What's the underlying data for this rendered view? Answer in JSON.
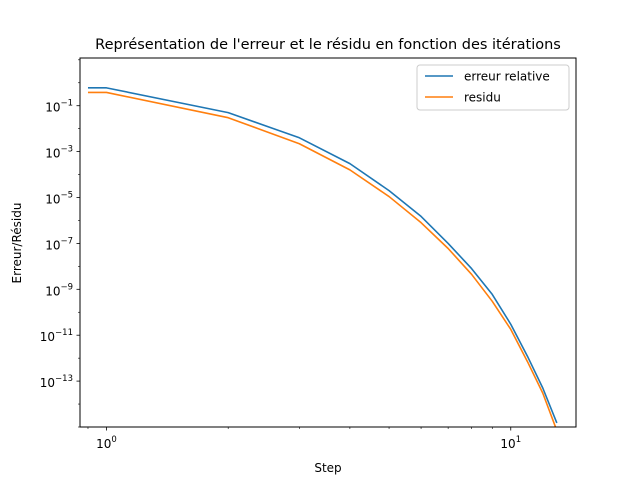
{
  "chart_data": {
    "type": "line",
    "title": "Représentation de l'erreur et le résidu en fonction des itérations",
    "xlabel": "Step",
    "ylabel": "Erreur/Résidu",
    "xscale": "log",
    "yscale": "log",
    "xlim": [
      0.86,
      14.5
    ],
    "ylim": [
      1e-15,
      12
    ],
    "x_ticks": [
      {
        "value": 1,
        "base": "10",
        "exp": "0"
      },
      {
        "value": 10,
        "base": "10",
        "exp": "1"
      }
    ],
    "y_ticks": [
      {
        "value": 0.1,
        "base": "10",
        "exp": "−1"
      },
      {
        "value": 0.001,
        "base": "10",
        "exp": "−3"
      },
      {
        "value": 1e-05,
        "base": "10",
        "exp": "−5"
      },
      {
        "value": 1e-07,
        "base": "10",
        "exp": "−7"
      },
      {
        "value": 1e-09,
        "base": "10",
        "exp": "−9"
      },
      {
        "value": 1e-11,
        "base": "10",
        "exp": "−11"
      },
      {
        "value": 1e-13,
        "base": "10",
        "exp": "−13"
      }
    ],
    "grid": false,
    "legend_position": "top-right",
    "x": [
      0.9,
      1,
      2,
      3,
      4,
      5,
      6,
      7,
      8,
      9,
      10,
      11,
      12,
      13
    ],
    "series": [
      {
        "name": "erreur relative",
        "color": "#1f77b4",
        "values": [
          0.6,
          0.6,
          0.05,
          0.004,
          0.0003,
          2e-05,
          1.5e-06,
          1e-07,
          8e-09,
          6e-10,
          3e-11,
          1.2e-12,
          5e-14,
          1.5e-15
        ]
      },
      {
        "name": "residu",
        "color": "#ff7f0e",
        "values": [
          0.38,
          0.38,
          0.03,
          0.0022,
          0.00016,
          1.1e-05,
          8e-07,
          6e-08,
          4.5e-09,
          3e-10,
          1.8e-11,
          7e-13,
          3e-14,
          7e-16
        ]
      }
    ]
  }
}
